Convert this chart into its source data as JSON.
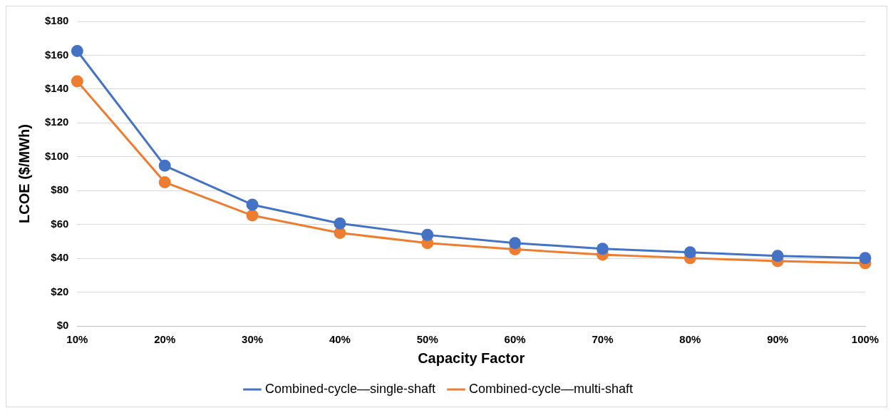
{
  "chart_data": {
    "type": "line",
    "xlabel": "Capacity Factor",
    "ylabel": "LCOE ($/MWh)",
    "categories": [
      "10%",
      "20%",
      "30%",
      "40%",
      "50%",
      "60%",
      "70%",
      "80%",
      "90%",
      "100%"
    ],
    "series": [
      {
        "name": "Combined-cycle—single-shaft",
        "color": "#4472c4",
        "values": [
          162.5,
          94.7,
          71.7,
          60.6,
          53.8,
          49,
          45.6,
          43.5,
          41.4,
          40.1
        ]
      },
      {
        "name": "Combined-cycle—multi-shaft",
        "color": "#ed7d31",
        "values": [
          144.6,
          84.9,
          65.3,
          55,
          49,
          45.3,
          42.2,
          40.1,
          38.4,
          37.1
        ]
      }
    ],
    "ylim": [
      0,
      180
    ],
    "yticks": [
      {
        "value": 0,
        "label": "$0"
      },
      {
        "value": 20,
        "label": "$20"
      },
      {
        "value": 40,
        "label": "$40"
      },
      {
        "value": 60,
        "label": "$60"
      },
      {
        "value": 80,
        "label": "$80"
      },
      {
        "value": 100,
        "label": "$100"
      },
      {
        "value": 120,
        "label": "$120"
      },
      {
        "value": 140,
        "label": "$140"
      },
      {
        "value": 160,
        "label": "$160"
      },
      {
        "value": 180,
        "label": "$180"
      }
    ],
    "grid": "y",
    "legend": "bottom",
    "marker": "circle",
    "line_style": "solid"
  }
}
